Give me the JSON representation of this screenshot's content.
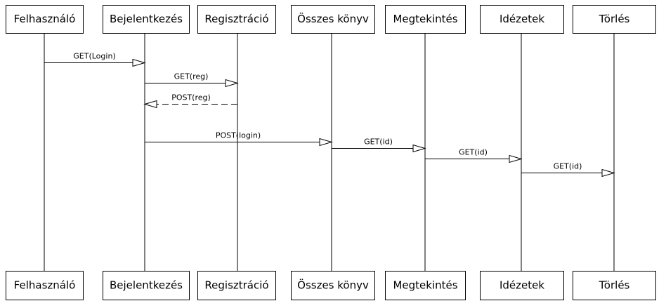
{
  "diagram": {
    "type": "sequence",
    "participants": [
      {
        "id": "felhasznalo",
        "label": "Felhasználó"
      },
      {
        "id": "bejelentkezes",
        "label": "Bejelentkezés"
      },
      {
        "id": "regisztracio",
        "label": "Regisztráció"
      },
      {
        "id": "osszes_konyv",
        "label": "Összes könyv"
      },
      {
        "id": "megtekintes",
        "label": "Megtekintés"
      },
      {
        "id": "idezetek",
        "label": "Idézetek"
      },
      {
        "id": "torles",
        "label": "Törlés"
      }
    ],
    "messages": [
      {
        "from": "felhasznalo",
        "to": "bejelentkezes",
        "label": "GET(Login)",
        "style": "solid"
      },
      {
        "from": "bejelentkezes",
        "to": "regisztracio",
        "label": "GET(reg)",
        "style": "solid"
      },
      {
        "from": "regisztracio",
        "to": "bejelentkezes",
        "label": "POST(reg)",
        "style": "dashed"
      },
      {
        "from": "bejelentkezes",
        "to": "osszes_konyv",
        "label": "POST(login)",
        "style": "solid"
      },
      {
        "from": "osszes_konyv",
        "to": "megtekintes",
        "label": "GET(id)",
        "style": "solid"
      },
      {
        "from": "megtekintes",
        "to": "idezetek",
        "label": "GET(id)",
        "style": "solid"
      },
      {
        "from": "idezetek",
        "to": "torles",
        "label": "GET(id)",
        "style": "solid"
      }
    ]
  }
}
